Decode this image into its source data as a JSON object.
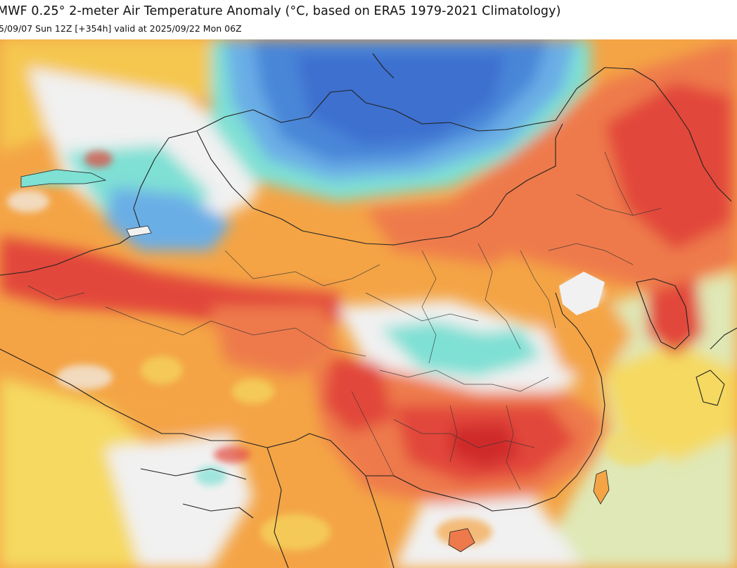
{
  "header": {
    "title": "MWF 0.25° 2-meter Air Temperature Anomaly (°C, based on ERA5 1979-2021 Climatology)",
    "subtitle": "5/09/07 Sun 12Z [+354h] valid at 2025/09/22 Mon 06Z"
  },
  "map": {
    "region": "China and surrounding Asia",
    "colors": {
      "deep_blue": "#3c6fcf",
      "blue": "#4a86d8",
      "light_blue": "#6aaee6",
      "cyan": "#7fe0d4",
      "neutral": "#f1f1f1",
      "pale_green": "#dfe8b6",
      "yellow": "#f5d960",
      "orange": "#f4a445",
      "salmon": "#ee7a4c",
      "red": "#e2463a",
      "dark_red": "#cf2a2a",
      "border_line": "#222222"
    }
  }
}
